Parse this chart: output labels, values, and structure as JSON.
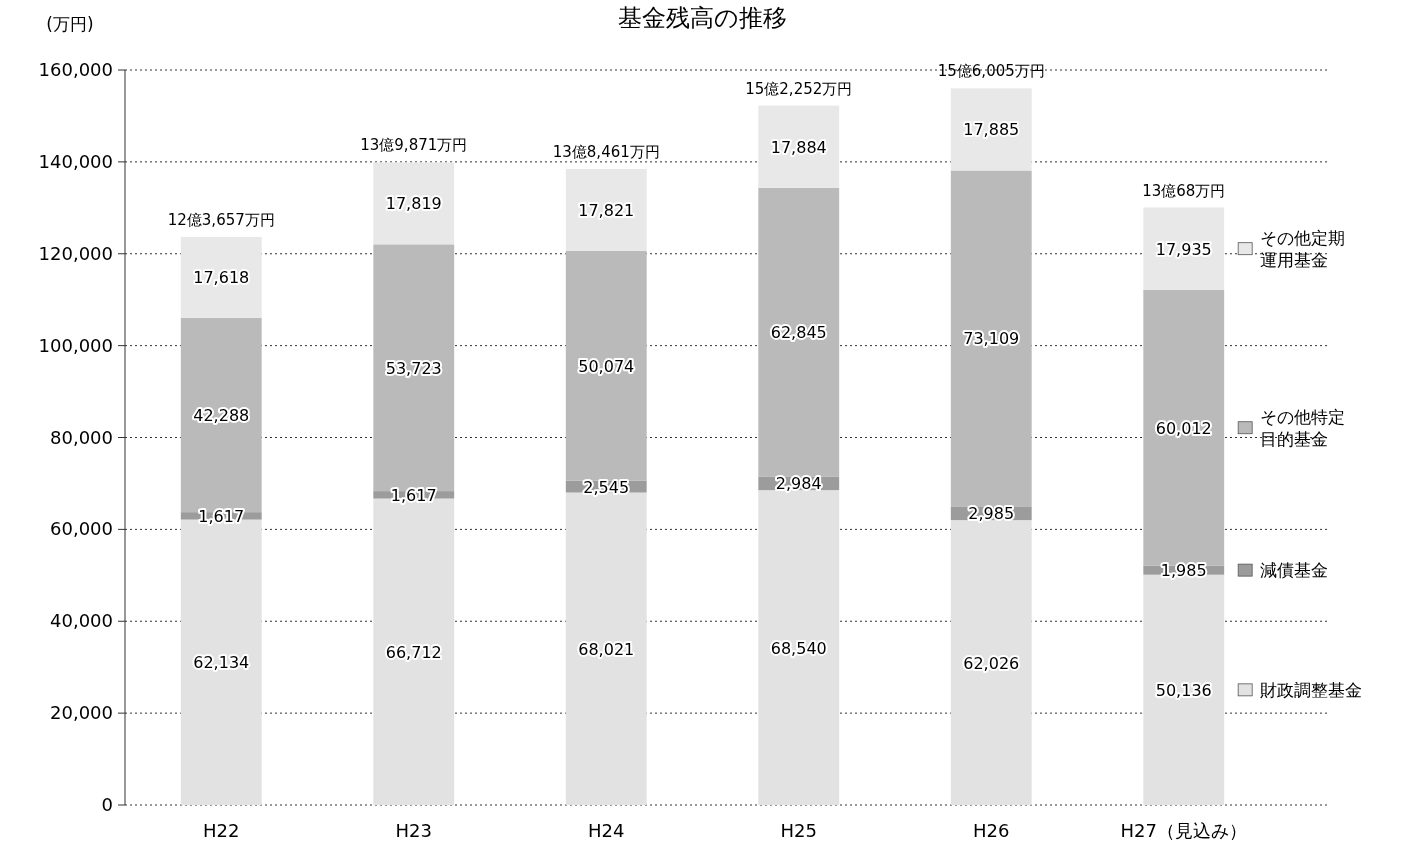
{
  "chart_data": {
    "type": "bar",
    "title": "基金残高の推移",
    "ylabel": "(万円)",
    "stacked": true,
    "categories": [
      "H22",
      "H23",
      "H24",
      "H25",
      "H26",
      "H27（見込み）"
    ],
    "series": [
      {
        "name": "財政調整基金",
        "color": "#e2e2e2",
        "values": [
          62134,
          66712,
          68021,
          68540,
          62026,
          50136
        ],
        "value_labels": [
          "62,134",
          "66,712",
          "68,021",
          "68,540",
          "62,026",
          "50,136"
        ]
      },
      {
        "name": "減債基金",
        "color": "#9c9c9c",
        "values": [
          1617,
          1617,
          2545,
          2984,
          2985,
          1985
        ],
        "value_labels": [
          "1,617",
          "1,617",
          "2,545",
          "2,984",
          "2,985",
          "1,985"
        ]
      },
      {
        "name": "その他特定目的基金",
        "color": "#bababa",
        "values": [
          42288,
          53723,
          50074,
          62845,
          73109,
          60012
        ],
        "value_labels": [
          "42,288",
          "53,723",
          "50,074",
          "62,845",
          "73,109",
          "60,012"
        ]
      },
      {
        "name": "その他定期運用基金",
        "color": "#e8e8e8",
        "values": [
          17618,
          17819,
          17821,
          17884,
          17885,
          17935
        ],
        "value_labels": [
          "17,618",
          "17,819",
          "17,821",
          "17,884",
          "17,885",
          "17,935"
        ]
      }
    ],
    "ylim": [
      0,
      160000
    ],
    "yticks": [
      {
        "value": 0,
        "label": "0"
      },
      {
        "value": 20000,
        "label": "20,000"
      },
      {
        "value": 40000,
        "label": "40,000"
      },
      {
        "value": 60000,
        "label": "60,000"
      },
      {
        "value": 80000,
        "label": "80,000"
      },
      {
        "value": 100000,
        "label": "100,000"
      },
      {
        "value": 120000,
        "label": "120,000"
      },
      {
        "value": 140000,
        "label": "140,000"
      },
      {
        "value": 160000,
        "label": "160,000"
      }
    ],
    "grid": "y",
    "legend": "right",
    "totals": [
      "12億3,657万円",
      "13億9,871万円",
      "13億8,461万円",
      "15億2,252万円",
      "15億6,005万円",
      "13億68万円"
    ]
  }
}
